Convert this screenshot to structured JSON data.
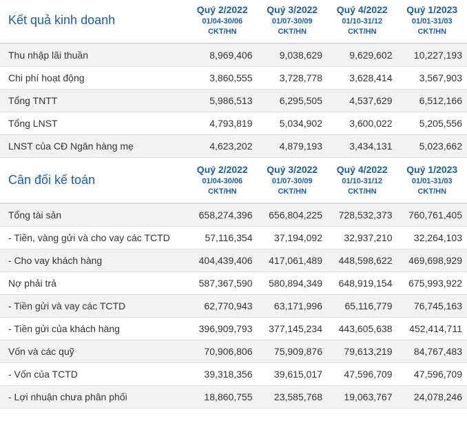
{
  "income": {
    "title": "Kết quả kinh doanh",
    "columns": [
      {
        "quarter": "Quý 2/2022",
        "dates": "01/04-30/06",
        "unit": "CKT/HN"
      },
      {
        "quarter": "Quý 3/2022",
        "dates": "01/07-30/09",
        "unit": "CKT/HN"
      },
      {
        "quarter": "Quý 4/2022",
        "dates": "01/10-31/12",
        "unit": "CKT/HN"
      },
      {
        "quarter": "Quý 1/2023",
        "dates": "01/01-31/03",
        "unit": "CKT/HN"
      }
    ],
    "rows": [
      {
        "label": "Thu nhập lãi thuần",
        "values": [
          "8,969,406",
          "9,038,629",
          "9,629,602",
          "10,227,193"
        ]
      },
      {
        "label": "Chi phí hoạt động",
        "values": [
          "3,860,555",
          "3,728,778",
          "3,628,414",
          "3,567,903"
        ]
      },
      {
        "label": "Tổng TNTT",
        "values": [
          "5,986,513",
          "6,295,505",
          "4,537,629",
          "6,512,166"
        ]
      },
      {
        "label": "Tổng LNST",
        "values": [
          "4,793,819",
          "5,034,902",
          "3,600,022",
          "5,205,556"
        ]
      },
      {
        "label": "LNST của CĐ Ngân hàng mẹ",
        "values": [
          "4,623,202",
          "4,879,193",
          "3,434,131",
          "5,023,662"
        ]
      }
    ]
  },
  "balance": {
    "title": "Cân đối kế toán",
    "columns": [
      {
        "quarter": "Quý 2/2022",
        "dates": "01/04-30/06",
        "unit": "CKT/HN"
      },
      {
        "quarter": "Quý 3/2022",
        "dates": "01/07-30/09",
        "unit": "CKT/HN"
      },
      {
        "quarter": "Quý 4/2022",
        "dates": "01/10-31/12",
        "unit": "CKT/HN"
      },
      {
        "quarter": "Quý 1/2023",
        "dates": "01/01-31/03",
        "unit": "CKT/HN"
      }
    ],
    "rows": [
      {
        "label": "Tổng tài sản",
        "values": [
          "658,274,396",
          "656,804,225",
          "728,532,373",
          "760,761,405"
        ]
      },
      {
        "label": "- Tiền, vàng gửi và cho vay các TCTD",
        "values": [
          "57,116,354",
          "37,194,092",
          "32,937,210",
          "32,264,103"
        ]
      },
      {
        "label": "- Cho vay khách hàng",
        "values": [
          "404,439,406",
          "417,061,489",
          "448,598,622",
          "469,698,929"
        ]
      },
      {
        "label": "Nợ phải trả",
        "values": [
          "587,367,590",
          "580,894,349",
          "648,919,154",
          "675,993,922"
        ]
      },
      {
        "label": "- Tiền gửi và vay các TCTD",
        "values": [
          "62,770,943",
          "63,171,996",
          "65,116,779",
          "76,745,163"
        ]
      },
      {
        "label": "- Tiền gửi của khách hàng",
        "values": [
          "396,909,793",
          "377,145,234",
          "443,605,638",
          "452,414,711"
        ]
      },
      {
        "label": "Vốn và các quỹ",
        "values": [
          "70,906,806",
          "75,909,876",
          "79,613,219",
          "84,767,483"
        ]
      },
      {
        "label": "- Vốn của TCTD",
        "values": [
          "39,318,356",
          "39,615,017",
          "47,596,709",
          "47,596,709"
        ]
      },
      {
        "label": "- Lợi nhuận chưa phân phối",
        "values": [
          "18,860,755",
          "23,585,768",
          "19,063,767",
          "24,078,246"
        ]
      }
    ]
  }
}
